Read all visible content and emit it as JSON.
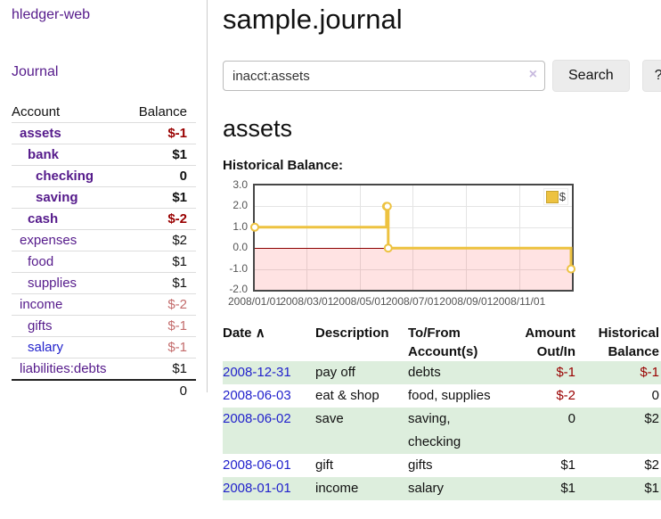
{
  "icons": {
    "sort_asc": "∧",
    "clear": "×"
  },
  "colors": {
    "accent_purple": "#551a8b",
    "link_blue": "#2222cc",
    "negative_strong": "#990000",
    "negative_soft": "#c36b6b",
    "stripe_green": "#ddeedd",
    "series_yellow": "#edc240",
    "zero_line": "#8b0000",
    "negative_region": "rgba(255,0,0,0.11)"
  },
  "sidebar": {
    "brand": "hledger-web",
    "nav": {
      "journal": "Journal"
    },
    "accounts": {
      "headers": {
        "account": "Account",
        "balance": "Balance"
      },
      "rows": [
        {
          "name": "assets",
          "balance": "$-1"
        },
        {
          "name": "bank",
          "balance": "$1"
        },
        {
          "name": "checking",
          "balance": "0"
        },
        {
          "name": "saving",
          "balance": "$1"
        },
        {
          "name": "cash",
          "balance": "$-2"
        },
        {
          "name": "expenses",
          "balance": "$2"
        },
        {
          "name": "food",
          "balance": "$1"
        },
        {
          "name": "supplies",
          "balance": "$1"
        },
        {
          "name": "income",
          "balance": "$-2"
        },
        {
          "name": "gifts",
          "balance": "$-1"
        },
        {
          "name": "salary",
          "balance": "$-1"
        },
        {
          "name": "liabilities:debts",
          "balance": "$1"
        }
      ],
      "total": "0"
    }
  },
  "main": {
    "title": "sample.journal",
    "search": {
      "value": "inacct:assets",
      "button": "Search",
      "help": "?"
    },
    "account_heading": "assets",
    "chart_title": "Historical Balance:"
  },
  "chart_data": {
    "type": "line",
    "step": true,
    "title": "Historical Balance",
    "series": [
      {
        "name": "$",
        "color": "#edc240",
        "points": [
          {
            "date": "2008-01-01",
            "value": 1
          },
          {
            "date": "2008-06-01",
            "value": 2
          },
          {
            "date": "2008-06-02",
            "value": 2
          },
          {
            "date": "2008-06-03",
            "value": 0
          },
          {
            "date": "2008-12-31",
            "value": -1
          }
        ]
      }
    ],
    "x_domain": [
      "2008-01-01",
      "2009-01-01"
    ],
    "x_ticks": [
      "2008/01/01",
      "2008/03/01",
      "2008/05/01",
      "2008/07/01",
      "2008/09/01",
      "2008/11/01"
    ],
    "y_ticks": [
      "3.0",
      "2.0",
      "1.0",
      "0.0",
      "-1.0",
      "-2.0"
    ],
    "ylim": [
      -2,
      3
    ],
    "grid": true,
    "legend_position": "top-right",
    "legend": "$"
  },
  "register": {
    "headers": {
      "date": "Date",
      "description": "Description",
      "accounts": "To/From Account(s)",
      "amount": "Amount Out/In",
      "balance": "Historical Balance"
    },
    "rows": [
      {
        "date": "2008-12-31",
        "description": "pay off",
        "accounts": "debts",
        "amount": "$-1",
        "balance": "$-1"
      },
      {
        "date": "2008-06-03",
        "description": "eat & shop",
        "accounts": "food, supplies",
        "amount": "$-2",
        "balance": "0"
      },
      {
        "date": "2008-06-02",
        "description": "save",
        "accounts": "saving, checking",
        "amount": "0",
        "balance": "$2"
      },
      {
        "date": "2008-06-01",
        "description": "gift",
        "accounts": "gifts",
        "amount": "$1",
        "balance": "$2"
      },
      {
        "date": "2008-01-01",
        "description": "income",
        "accounts": "salary",
        "amount": "$1",
        "balance": "$1"
      }
    ]
  }
}
